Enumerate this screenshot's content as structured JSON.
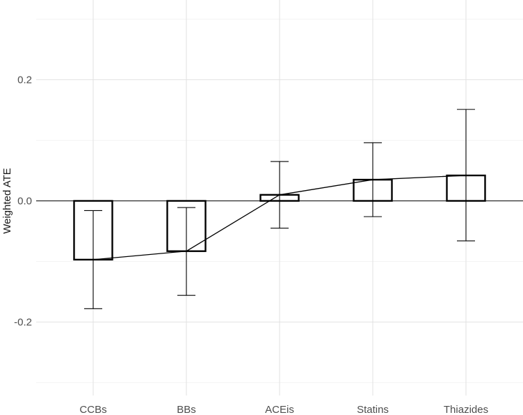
{
  "chart_data": {
    "type": "bar",
    "title": "",
    "xlabel": "",
    "ylabel": "Weighted ATE",
    "categories": [
      "CCBs",
      "BBs",
      "ACEis",
      "Statins",
      "Thiazides"
    ],
    "values": [
      -0.097,
      -0.083,
      0.01,
      0.035,
      0.042
    ],
    "error_lower": [
      -0.178,
      -0.156,
      -0.045,
      -0.026,
      -0.066
    ],
    "error_upper": [
      -0.016,
      -0.011,
      0.065,
      0.096,
      0.151
    ],
    "yticks": [
      -0.2,
      0.0,
      0.2
    ],
    "ytick_labels": [
      "-0.2",
      "0.0",
      "0.2"
    ],
    "ylim": [
      -0.3,
      0.3
    ],
    "grid": true,
    "connect_line": true,
    "colors": {
      "bar_fill": "#ffffff",
      "bar_stroke": "#000000",
      "grid_major": "#e3e3e3",
      "grid_minor": "#f0f0f0",
      "zero_line": "#000000"
    }
  }
}
